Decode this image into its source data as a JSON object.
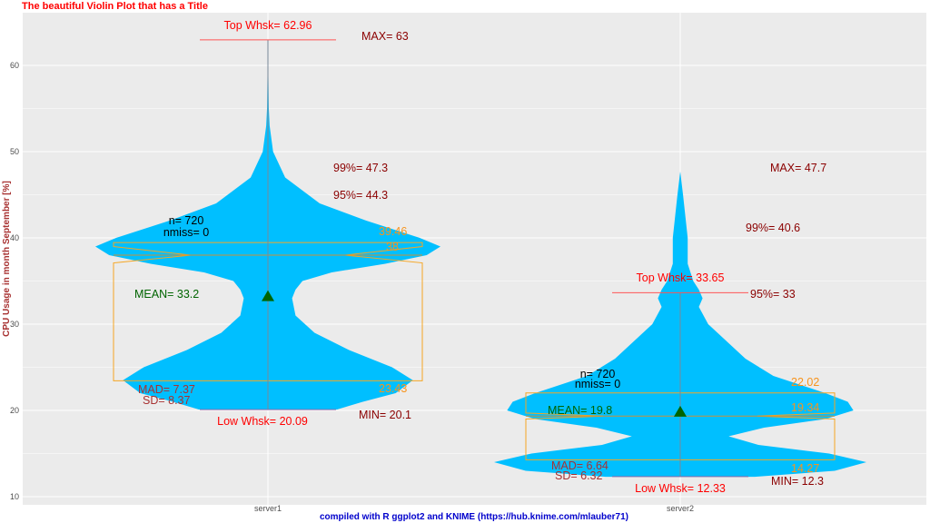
{
  "chart_data": {
    "type": "violin",
    "title": "The beautiful Violin Plot that has a Title",
    "ylabel": "CPU Usage in month September [%]",
    "xlabel": "",
    "caption": "compiled with R ggplot2 and KNIME (https://hub.knime.com/mlauber71)",
    "ylim": [
      8,
      65
    ],
    "yticks": [
      "10",
      "20",
      "30",
      "40",
      "50",
      "60"
    ],
    "grid": true,
    "colors": {
      "violin": "#00BFFF",
      "box": "#F5A623",
      "whisker_label": "#FF0000",
      "stat_label": "#8B0000",
      "spread_label": "#A83232",
      "quartile_label": "#F7941D",
      "mean": "#006400",
      "panel": "#EBEBEB"
    },
    "categories": [
      "server1",
      "server2"
    ],
    "groups": [
      {
        "name": "server1",
        "density": [
          [
            63,
            0
          ],
          [
            55,
            0.005
          ],
          [
            53,
            0.01
          ],
          [
            50,
            0.03
          ],
          [
            47,
            0.1
          ],
          [
            44,
            0.3
          ],
          [
            42,
            0.57
          ],
          [
            40,
            0.88
          ],
          [
            39,
            1.0
          ],
          [
            38,
            0.92
          ],
          [
            37,
            0.68
          ],
          [
            36,
            0.37
          ],
          [
            35,
            0.2
          ],
          [
            34,
            0.16
          ],
          [
            33,
            0.14
          ],
          [
            31,
            0.16
          ],
          [
            29,
            0.27
          ],
          [
            27,
            0.47
          ],
          [
            25,
            0.72
          ],
          [
            23.5,
            0.84
          ],
          [
            22,
            0.74
          ],
          [
            21,
            0.55
          ],
          [
            20.1,
            0.4
          ]
        ],
        "top_whisker": 62.96,
        "low_whisker": 20.09,
        "q1": 23.43,
        "median": 38,
        "q3": 39.46,
        "notch_low": 37.1,
        "notch_high": 39.0,
        "mean": 33.2,
        "labels": {
          "top_whsk": "Top Whsk= 62.96",
          "max": "MAX= 63",
          "p99": "99%= 47.3",
          "p95": "95%= 44.3",
          "n": "n= 720",
          "nmiss": "nmiss= 0",
          "q3": "39.46",
          "median": "38",
          "mean": "MEAN= 33.2",
          "mad": "MAD= 7.37",
          "sd": "SD= 8.37",
          "q1": "23.43",
          "low_whsk": "Low Whsk= 20.09",
          "min": "MIN= 20.1"
        }
      },
      {
        "name": "server2",
        "density": [
          [
            47.7,
            0
          ],
          [
            45,
            0.015
          ],
          [
            42,
            0.03
          ],
          [
            40,
            0.04
          ],
          [
            37,
            0.04
          ],
          [
            35,
            0.07
          ],
          [
            34,
            0.1
          ],
          [
            33,
            0.12
          ],
          [
            32,
            0.1
          ],
          [
            30,
            0.15
          ],
          [
            28,
            0.25
          ],
          [
            26,
            0.35
          ],
          [
            24,
            0.5
          ],
          [
            23,
            0.64
          ],
          [
            22,
            0.78
          ],
          [
            21,
            0.9
          ],
          [
            20,
            0.93
          ],
          [
            19,
            0.78
          ],
          [
            18,
            0.45
          ],
          [
            17,
            0.26
          ],
          [
            16,
            0.42
          ],
          [
            15,
            0.8
          ],
          [
            14,
            1.0
          ],
          [
            13,
            0.83
          ],
          [
            12.3,
            0.4
          ]
        ],
        "top_whisker": 33.65,
        "low_whisker": 12.33,
        "q1": 14.27,
        "median": 19.34,
        "q3": 22.02,
        "notch_low": 19.0,
        "notch_high": 19.7,
        "mean": 19.8,
        "labels": {
          "top_whsk": "Top Whsk= 33.65",
          "max": "MAX= 47.7",
          "p99": "99%= 40.6",
          "p95": "95%= 33",
          "n": "n= 720",
          "nmiss": "nmiss= 0",
          "q3": "22.02",
          "median": "19.34",
          "mean": "MEAN= 19.8",
          "mad": "MAD= 6.64",
          "sd": "SD= 6.32",
          "q1": "14.27",
          "low_whsk": "Low Whsk= 12.33",
          "min": "MIN= 12.3"
        }
      }
    ]
  }
}
